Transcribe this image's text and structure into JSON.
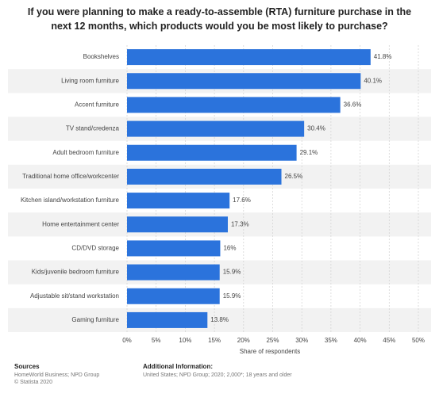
{
  "chart_data": {
    "type": "bar",
    "orientation": "horizontal",
    "title": "If you were planning to make a ready-to-assemble (RTA) furniture purchase in the next 12 months, which products would you be most likely to purchase?",
    "categories": [
      "Bookshelves",
      "Living room furniture",
      "Accent furniture",
      "TV stand/credenza",
      "Adult bedroom furniture",
      "Traditional home office/workcenter",
      "Kitchen island/workstation furniture",
      "Home entertainment center",
      "CD/DVD storage",
      "Kids/juvenile bedroom furniture",
      "Adjustable sit/stand workstation",
      "Gaming furniture"
    ],
    "values": [
      41.8,
      40.1,
      36.6,
      30.4,
      29.1,
      26.5,
      17.6,
      17.3,
      16,
      15.9,
      15.9,
      13.8
    ],
    "value_labels": [
      "41.8%",
      "40.1%",
      "36.6%",
      "30.4%",
      "29.1%",
      "26.5%",
      "17.6%",
      "17.3%",
      "16%",
      "15.9%",
      "15.9%",
      "13.8%"
    ],
    "color": "#2b73dc",
    "xlim": [
      0,
      50
    ],
    "xticks": [
      {
        "value": 0,
        "label": "0%"
      },
      {
        "value": 5,
        "label": "5%"
      },
      {
        "value": 10,
        "label": "10%"
      },
      {
        "value": 15,
        "label": "15%"
      },
      {
        "value": 20,
        "label": "20%"
      },
      {
        "value": 25,
        "label": "25%"
      },
      {
        "value": 30,
        "label": "30%"
      },
      {
        "value": 35,
        "label": "35%"
      },
      {
        "value": 40,
        "label": "40%"
      },
      {
        "value": 45,
        "label": "45%"
      },
      {
        "value": 50,
        "label": "50%"
      }
    ],
    "xlabel": "Share of respondents",
    "grid": true
  },
  "footer": {
    "sources_title": "Sources",
    "sources": [
      "HomeWorld Business; NPD Group",
      "© Statista 2020"
    ],
    "info_title": "Additional Information:",
    "info": "United States; NPD Group; 2020; 2,000*; 18 years and older"
  }
}
